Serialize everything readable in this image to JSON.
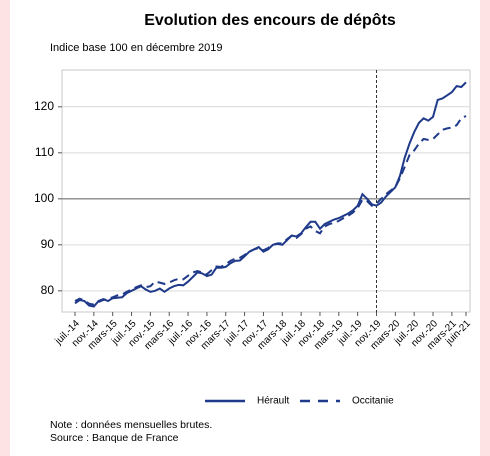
{
  "chart_data": {
    "type": "line",
    "title": "Evolution des encours de dépôts",
    "subtitle": "Indice base 100 en décembre 2019",
    "notes": [
      "Note : données mensuelles brutes.",
      "Source : Banque de France"
    ],
    "categories": [
      "juil.-14",
      null,
      null,
      null,
      "nov.-14",
      null,
      null,
      null,
      "mars-15",
      null,
      null,
      null,
      "juil.-15",
      null,
      null,
      null,
      "nov.-15",
      null,
      null,
      null,
      "mars-16",
      null,
      null,
      null,
      "juil.-16",
      null,
      null,
      null,
      "nov.-16",
      null,
      null,
      null,
      "mars-17",
      null,
      null,
      null,
      "juil.-17",
      null,
      null,
      null,
      "nov.-17",
      null,
      null,
      null,
      "mars-18",
      null,
      null,
      null,
      "juil.-18",
      null,
      null,
      null,
      "nov.-18",
      null,
      null,
      null,
      "mars-19",
      null,
      null,
      null,
      "juil.-19",
      null,
      null,
      null,
      "nov.-19",
      null,
      null,
      null,
      "mars-20",
      null,
      null,
      null,
      "juil.-20",
      null,
      null,
      null,
      "nov.-20",
      null,
      null,
      null,
      "mars-21",
      null,
      null,
      "juin-21"
    ],
    "series": [
      {
        "name": "Hérault",
        "color": "#1f3a8a",
        "dash": false,
        "values": [
          77.3,
          78,
          77.8,
          76.8,
          76.6,
          77.8,
          78.2,
          77.8,
          78.4,
          78.5,
          78.6,
          79.5,
          80,
          80.5,
          81,
          80.3,
          79.8,
          80,
          80.5,
          79.8,
          80.5,
          81,
          81.3,
          81.2,
          82,
          83,
          84,
          83.8,
          83.2,
          83.5,
          85,
          85,
          85.2,
          86,
          86.5,
          86.6,
          87.5,
          88.5,
          89,
          89.5,
          88.5,
          89,
          90,
          90.2,
          90,
          91,
          92,
          91.8,
          92.5,
          93.8,
          95,
          95,
          93.5,
          94.5,
          95,
          95.5,
          95.8,
          96.3,
          96.8,
          97.5,
          98.5,
          101,
          100,
          98.8,
          98.5,
          99.2,
          100.5,
          101.5,
          102.5,
          105,
          109,
          112,
          114.5,
          116.5,
          117.5,
          117,
          117.8,
          121.5,
          121.8,
          122.5,
          123.2,
          124.5,
          124.3,
          125.3
        ]
      },
      {
        "name": "Occitanie",
        "color": "#1f3a8a",
        "dash": true,
        "values": [
          77.8,
          78.3,
          77.9,
          77.2,
          77,
          77.6,
          78,
          78.3,
          78.6,
          79,
          79.2,
          79.8,
          80.3,
          80.8,
          81.2,
          80.8,
          81,
          82,
          81.8,
          81.5,
          81.8,
          82.3,
          82.6,
          82.5,
          83.3,
          84,
          84.3,
          84,
          83.6,
          84.5,
          85.3,
          85.2,
          85.8,
          86.5,
          87,
          87.2,
          87.8,
          88.5,
          89,
          89.3,
          88.8,
          89.3,
          90,
          90.3,
          90.3,
          91.2,
          92,
          91.5,
          92.3,
          93.5,
          94,
          93,
          92.5,
          94,
          94.5,
          94.8,
          95.2,
          95.8,
          96.3,
          97,
          98,
          99.8,
          99.5,
          98.5,
          99,
          100,
          101,
          101.8,
          102.5,
          104.5,
          107,
          109.5,
          110.5,
          112,
          113,
          112.8,
          113,
          114,
          115,
          115.3,
          115.5,
          116,
          117.5,
          118
        ]
      }
    ],
    "ylim": [
      75.4,
      128
    ],
    "yticks": [
      80,
      90,
      100,
      110,
      120
    ],
    "grid": true,
    "baseline": 100,
    "reference_line": "nov.-19",
    "legend": "bottom"
  }
}
